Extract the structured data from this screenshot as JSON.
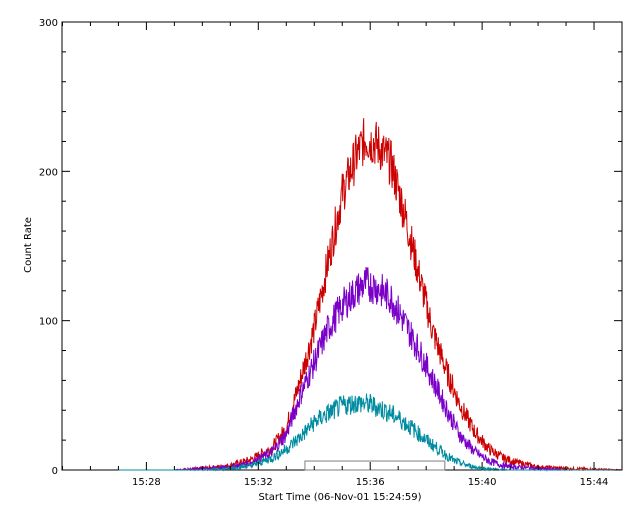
{
  "chart_data": {
    "type": "line",
    "xlabel": "Start Time (06-Nov-01 15:24:59)",
    "ylabel": "Count Rate",
    "xlim": [
      "15:24:59",
      "15:45:00"
    ],
    "ylim": [
      0,
      300
    ],
    "x_ticks": [
      "15:28",
      "15:32",
      "15:36",
      "15:40",
      "15:44"
    ],
    "y_ticks": [
      0,
      100,
      200,
      300
    ],
    "grid": false,
    "legend": "none",
    "series": [
      {
        "color": "#cc0000",
        "x": [
          "15:27:00",
          "15:29:00",
          "15:30:00",
          "15:31:00",
          "15:31:45",
          "15:32:30",
          "15:33:00",
          "15:33:30",
          "15:34:00",
          "15:34:30",
          "15:35:00",
          "15:35:30",
          "15:35:50",
          "15:36:15",
          "15:36:45",
          "15:37:15",
          "15:37:45",
          "15:38:15",
          "15:38:45",
          "15:39:15",
          "15:39:45",
          "15:40:15",
          "15:40:45",
          "15:41:15",
          "15:42:00",
          "15:43:00",
          "15:45:00"
        ],
        "y": [
          0,
          0,
          1,
          3,
          7,
          15,
          28,
          60,
          95,
          140,
          185,
          210,
          222,
          218,
          205,
          170,
          130,
          92,
          65,
          42,
          25,
          14,
          8,
          5,
          2,
          1,
          0
        ]
      },
      {
        "color": "#7a00c8",
        "x": [
          "15:27:00",
          "15:29:00",
          "15:30:00",
          "15:31:00",
          "15:31:45",
          "15:32:30",
          "15:33:00",
          "15:33:30",
          "15:34:00",
          "15:34:30",
          "15:35:00",
          "15:35:30",
          "15:35:50",
          "15:36:15",
          "15:36:45",
          "15:37:15",
          "15:37:45",
          "15:38:15",
          "15:38:45",
          "15:39:15",
          "15:39:45",
          "15:40:15",
          "15:40:45",
          "15:41:15",
          "15:42:00",
          "15:43:00",
          "15:45:00"
        ],
        "y": [
          0,
          0,
          1,
          2,
          5,
          12,
          24,
          50,
          72,
          95,
          110,
          120,
          125,
          122,
          115,
          98,
          80,
          60,
          40,
          22,
          12,
          6,
          3,
          2,
          1,
          0,
          0
        ]
      },
      {
        "color": "#008ca0",
        "x": [
          "15:27:00",
          "15:30:00",
          "15:31:00",
          "15:31:45",
          "15:32:30",
          "15:33:00",
          "15:33:30",
          "15:34:00",
          "15:34:30",
          "15:35:00",
          "15:35:30",
          "15:36:00",
          "15:36:30",
          "15:37:00",
          "15:37:30",
          "15:38:00",
          "15:38:30",
          "15:39:00",
          "15:39:30",
          "15:40:00",
          "15:41:00",
          "15:42:00",
          "15:45:00"
        ],
        "y": [
          0,
          0,
          1,
          3,
          8,
          14,
          22,
          32,
          38,
          43,
          45,
          44,
          40,
          35,
          28,
          20,
          13,
          6,
          3,
          1,
          0,
          0,
          0
        ]
      }
    ],
    "highlight_range": {
      "x": [
        "15:33:40",
        "15:38:40"
      ],
      "y": [
        0,
        6
      ]
    }
  }
}
